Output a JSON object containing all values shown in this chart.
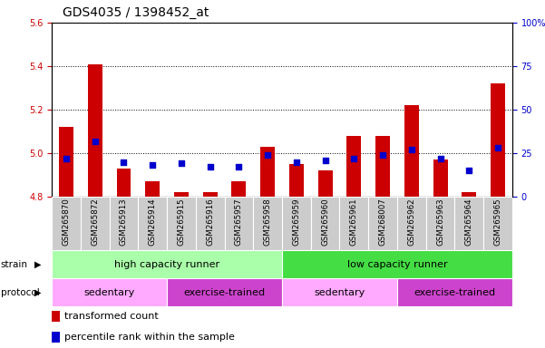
{
  "title": "GDS4035 / 1398452_at",
  "samples": [
    "GSM265870",
    "GSM265872",
    "GSM265913",
    "GSM265914",
    "GSM265915",
    "GSM265916",
    "GSM265957",
    "GSM265958",
    "GSM265959",
    "GSM265960",
    "GSM265961",
    "GSM268007",
    "GSM265962",
    "GSM265963",
    "GSM265964",
    "GSM265965"
  ],
  "transformed_count": [
    5.12,
    5.41,
    4.93,
    4.87,
    4.82,
    4.82,
    4.87,
    5.03,
    4.95,
    4.92,
    5.08,
    5.08,
    5.22,
    4.97,
    4.82,
    5.32
  ],
  "percentile_rank": [
    22,
    32,
    20,
    18,
    19,
    17,
    17,
    24,
    20,
    21,
    22,
    24,
    27,
    22,
    15,
    28
  ],
  "ylim_left": [
    4.8,
    5.6
  ],
  "ylim_right": [
    0,
    100
  ],
  "yticks_left": [
    4.8,
    5.0,
    5.2,
    5.4,
    5.6
  ],
  "yticks_right": [
    0,
    25,
    50,
    75,
    100
  ],
  "bar_color_red": "#cc0000",
  "bar_color_blue": "#0000cc",
  "background_color": "#ffffff",
  "strain_groups": [
    {
      "label": "high capacity runner",
      "start": 0,
      "end": 8,
      "color": "#aaffaa"
    },
    {
      "label": "low capacity runner",
      "start": 8,
      "end": 16,
      "color": "#44dd44"
    }
  ],
  "protocol_groups": [
    {
      "label": "sedentary",
      "start": 0,
      "end": 4,
      "color": "#ffaaff"
    },
    {
      "label": "exercise-trained",
      "start": 4,
      "end": 8,
      "color": "#cc44cc"
    },
    {
      "label": "sedentary",
      "start": 8,
      "end": 12,
      "color": "#ffaaff"
    },
    {
      "label": "exercise-trained",
      "start": 12,
      "end": 16,
      "color": "#cc44cc"
    }
  ],
  "tick_bg_color": "#cccccc",
  "title_fontsize": 10,
  "tick_fontsize": 7,
  "bar_width": 0.5,
  "grid_yticks": [
    5.0,
    5.2,
    5.4
  ]
}
